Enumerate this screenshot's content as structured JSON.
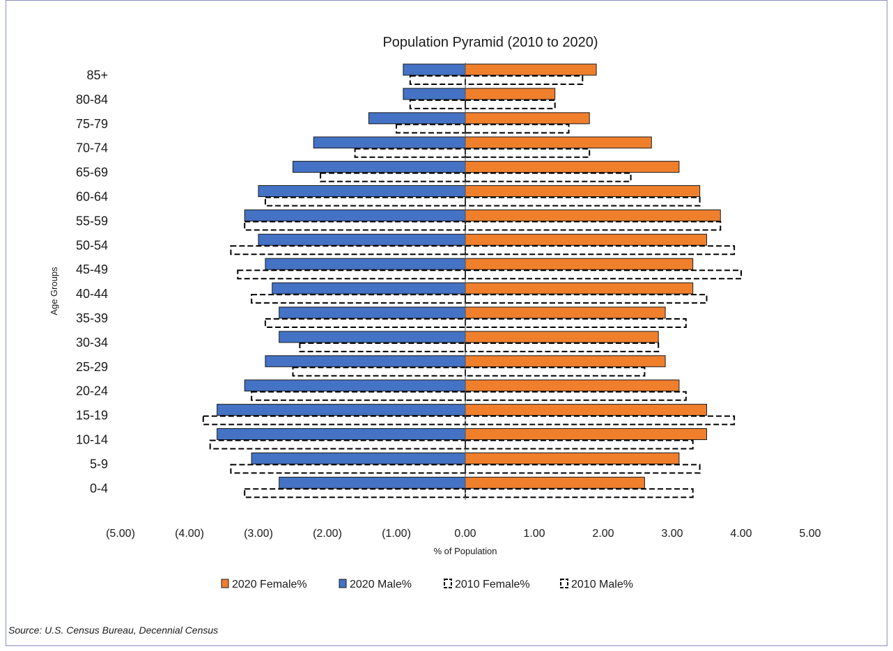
{
  "chart_data": {
    "type": "bar",
    "orientation": "horizontal",
    "title": "Population Pyramid (2010 to 2020)",
    "xlabel": "% of Population",
    "ylabel": "Age Groups",
    "categories": [
      "0-4",
      "5-9",
      "10-14",
      "15-19",
      "20-24",
      "25-29",
      "30-34",
      "35-39",
      "40-44",
      "45-49",
      "50-54",
      "55-59",
      "60-64",
      "65-69",
      "70-74",
      "75-79",
      "80-84",
      "85+"
    ],
    "xlim": [
      -5,
      5
    ],
    "xticks": [
      -5,
      -4,
      -3,
      -2,
      -1,
      0,
      1,
      2,
      3,
      4,
      5
    ],
    "xtick_labels": [
      "(5.00)",
      "(4.00)",
      "(3.00)",
      "(2.00)",
      "(1.00)",
      "0.00",
      "1.00",
      "2.00",
      "3.00",
      "4.00",
      "5.00"
    ],
    "series": [
      {
        "name": "2020 Female%",
        "color": "#f07f2c",
        "style": "solid",
        "values": [
          2.6,
          3.1,
          3.5,
          3.5,
          3.1,
          2.9,
          2.8,
          2.9,
          3.3,
          3.3,
          3.5,
          3.7,
          3.4,
          3.1,
          2.7,
          1.8,
          1.3,
          1.9
        ]
      },
      {
        "name": "2020 Male%",
        "color": "#4472c4",
        "style": "solid",
        "values": [
          -2.7,
          -3.1,
          -3.6,
          -3.6,
          -3.2,
          -2.9,
          -2.7,
          -2.7,
          -2.8,
          -2.9,
          -3.0,
          -3.2,
          -3.0,
          -2.5,
          -2.2,
          -1.4,
          -0.9,
          -0.9
        ]
      },
      {
        "name": "2010 Female%",
        "color": "#000000",
        "style": "dashed",
        "values": [
          3.3,
          3.4,
          3.3,
          3.9,
          3.2,
          2.6,
          2.8,
          3.2,
          3.5,
          4.0,
          3.9,
          3.7,
          3.4,
          2.4,
          1.8,
          1.5,
          1.3,
          1.7
        ]
      },
      {
        "name": "2010 Male%",
        "color": "#000000",
        "style": "dashed",
        "values": [
          -3.2,
          -3.4,
          -3.7,
          -3.8,
          -3.1,
          -2.5,
          -2.4,
          -2.9,
          -3.1,
          -3.3,
          -3.4,
          -3.2,
          -2.9,
          -2.1,
          -1.6,
          -1.0,
          -0.8,
          -0.8
        ]
      }
    ],
    "legend_position": "bottom",
    "grid": false
  },
  "source": "Source: U.S. Census Bureau, Decennial Census"
}
